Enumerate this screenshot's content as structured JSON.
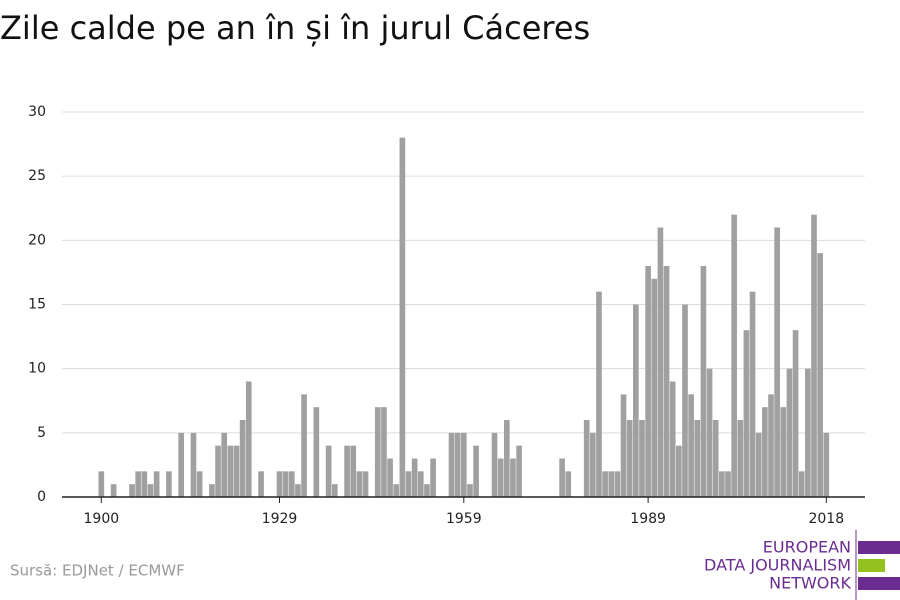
{
  "chart_data": {
    "type": "bar",
    "title": "Zile calde pe an în și în jurul Cáceres",
    "source": "Sursă: EDJNet / ECMWF",
    "logo": [
      "EUROPEAN",
      "DATA JOURNALISM",
      "NETWORK"
    ],
    "color": "#a0a0a0",
    "x": [
      1900,
      1901,
      1902,
      1903,
      1904,
      1905,
      1906,
      1907,
      1908,
      1909,
      1910,
      1911,
      1912,
      1913,
      1914,
      1915,
      1916,
      1917,
      1918,
      1919,
      1920,
      1921,
      1922,
      1923,
      1924,
      1925,
      1926,
      1927,
      1928,
      1929,
      1930,
      1931,
      1932,
      1933,
      1934,
      1935,
      1936,
      1937,
      1938,
      1939,
      1940,
      1941,
      1942,
      1943,
      1944,
      1945,
      1946,
      1947,
      1948,
      1949,
      1950,
      1951,
      1952,
      1953,
      1954,
      1955,
      1956,
      1957,
      1958,
      1959,
      1960,
      1961,
      1962,
      1963,
      1964,
      1965,
      1966,
      1967,
      1968,
      1969,
      1970,
      1971,
      1972,
      1973,
      1974,
      1975,
      1976,
      1977,
      1978,
      1979,
      1980,
      1981,
      1982,
      1983,
      1984,
      1985,
      1986,
      1987,
      1988,
      1989,
      1990,
      1991,
      1992,
      1993,
      1994,
      1995,
      1996,
      1997,
      1998,
      1999,
      2000,
      2001,
      2002,
      2003,
      2004,
      2005,
      2006,
      2007,
      2008,
      2009,
      2010,
      2011,
      2012,
      2013,
      2014,
      2015,
      2016,
      2017,
      2018
    ],
    "values": [
      2,
      0,
      1,
      0,
      0,
      1,
      2,
      2,
      1,
      2,
      0,
      2,
      0,
      5,
      0,
      5,
      2,
      0,
      1,
      4,
      5,
      4,
      4,
      6,
      9,
      0,
      2,
      0,
      0,
      2,
      2,
      2,
      1,
      8,
      0,
      7,
      0,
      4,
      1,
      0,
      4,
      4,
      2,
      2,
      0,
      7,
      7,
      3,
      1,
      28,
      2,
      3,
      2,
      1,
      3,
      0,
      0,
      5,
      5,
      5,
      1,
      4,
      0,
      0,
      5,
      3,
      6,
      3,
      4,
      0,
      0,
      0,
      0,
      0,
      0,
      3,
      2,
      0,
      0,
      6,
      5,
      16,
      2,
      2,
      2,
      8,
      6,
      15,
      6,
      18,
      17,
      21,
      18,
      9,
      4,
      15,
      8,
      6,
      18,
      10,
      6,
      2,
      2,
      22,
      6,
      13,
      16,
      5,
      7,
      8,
      21,
      7,
      10,
      13,
      2,
      10,
      22,
      19,
      5
    ],
    "xlim": [
      1893.6,
      2024.3
    ],
    "xticks": [
      1900,
      1929,
      1959,
      1989,
      2018
    ],
    "ylim": [
      0,
      30
    ],
    "yticks": [
      0,
      5,
      10,
      15,
      20,
      25,
      30
    ],
    "grid": true
  }
}
